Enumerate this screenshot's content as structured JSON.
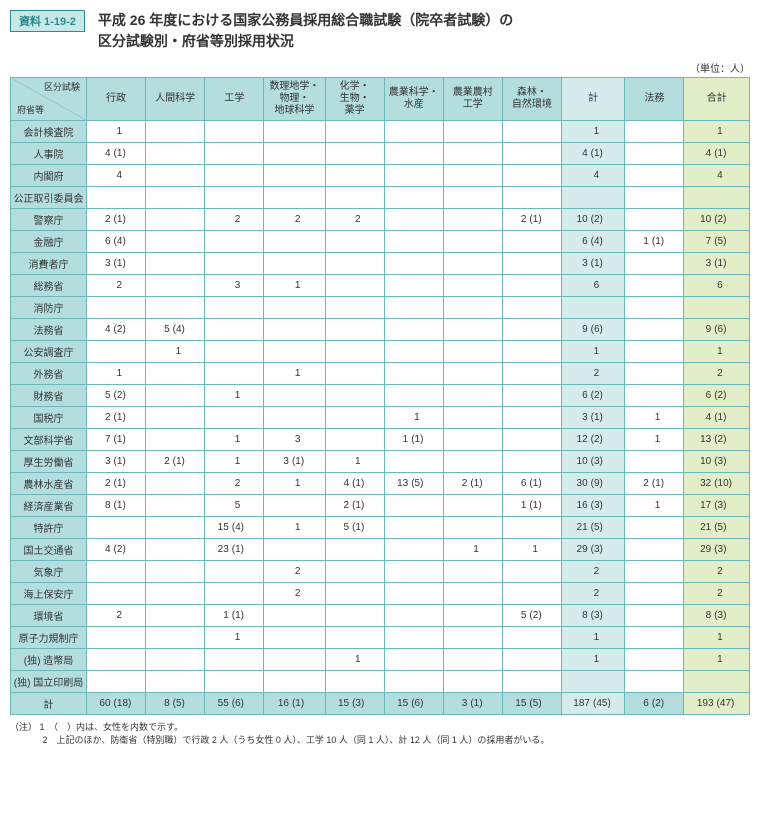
{
  "badge": "資料 1-19-2",
  "title_line1": "平成 26 年度における国家公務員採用総合職試験（院卒者試験）の",
  "title_line2": "区分試験別・府省等別採用状況",
  "unit": "（単位：人）",
  "diag_top": "区分試験",
  "diag_bottom": "府省等",
  "columns": [
    "行政",
    "人間科学",
    "工学",
    "数理地学・\n物理・\n地球科学",
    "化学・\n生物・\n薬学",
    "農業科学・\n水産",
    "農業農村\n工学",
    "森林・\n自然環境",
    "計",
    "法務",
    "合計"
  ],
  "rows": [
    {
      "name": "会計検査院",
      "c": [
        {
          "m": "1"
        },
        {},
        {},
        {},
        {},
        {},
        {},
        {},
        {
          "m": "1"
        },
        {},
        {
          "m": "1"
        }
      ]
    },
    {
      "name": "人事院",
      "c": [
        {
          "m": "4",
          "p": "(1)"
        },
        {},
        {},
        {},
        {},
        {},
        {},
        {},
        {
          "m": "4",
          "p": "(1)"
        },
        {},
        {
          "m": "4",
          "p": "(1)"
        }
      ]
    },
    {
      "name": "内閣府",
      "c": [
        {
          "m": "4"
        },
        {},
        {},
        {},
        {},
        {},
        {},
        {},
        {
          "m": "4"
        },
        {},
        {
          "m": "4"
        }
      ]
    },
    {
      "name": "公正取引委員会",
      "c": [
        {},
        {},
        {},
        {},
        {},
        {},
        {},
        {},
        {},
        {},
        {}
      ]
    },
    {
      "name": "警察庁",
      "c": [
        {
          "m": "2",
          "p": "(1)"
        },
        {},
        {
          "m": "2"
        },
        {
          "m": "2"
        },
        {
          "m": "2"
        },
        {},
        {},
        {
          "m": "2",
          "p": "(1)"
        },
        {
          "m": "10",
          "p": "(2)"
        },
        {},
        {
          "m": "10",
          "p": "(2)"
        }
      ]
    },
    {
      "name": "金融庁",
      "c": [
        {
          "m": "6",
          "p": "(4)"
        },
        {},
        {},
        {},
        {},
        {},
        {},
        {},
        {
          "m": "6",
          "p": "(4)"
        },
        {
          "m": "1",
          "p": "(1)"
        },
        {
          "m": "7",
          "p": "(5)"
        }
      ]
    },
    {
      "name": "消費者庁",
      "c": [
        {
          "m": "3",
          "p": "(1)"
        },
        {},
        {},
        {},
        {},
        {},
        {},
        {},
        {
          "m": "3",
          "p": "(1)"
        },
        {},
        {
          "m": "3",
          "p": "(1)"
        }
      ]
    },
    {
      "name": "総務省",
      "c": [
        {
          "m": "2"
        },
        {},
        {
          "m": "3"
        },
        {
          "m": "1"
        },
        {},
        {},
        {},
        {},
        {
          "m": "6"
        },
        {},
        {
          "m": "6"
        }
      ]
    },
    {
      "name": "消防庁",
      "c": [
        {},
        {},
        {},
        {},
        {},
        {},
        {},
        {},
        {},
        {},
        {}
      ]
    },
    {
      "name": "法務省",
      "c": [
        {
          "m": "4",
          "p": "(2)"
        },
        {
          "m": "5",
          "p": "(4)"
        },
        {},
        {},
        {},
        {},
        {},
        {},
        {
          "m": "9",
          "p": "(6)"
        },
        {},
        {
          "m": "9",
          "p": "(6)"
        }
      ]
    },
    {
      "name": "公安調査庁",
      "c": [
        {},
        {
          "m": "1"
        },
        {},
        {},
        {},
        {},
        {},
        {},
        {
          "m": "1"
        },
        {},
        {
          "m": "1"
        }
      ]
    },
    {
      "name": "外務省",
      "c": [
        {
          "m": "1"
        },
        {},
        {},
        {
          "m": "1"
        },
        {},
        {},
        {},
        {},
        {
          "m": "2"
        },
        {},
        {
          "m": "2"
        }
      ]
    },
    {
      "name": "財務省",
      "c": [
        {
          "m": "5",
          "p": "(2)"
        },
        {},
        {
          "m": "1"
        },
        {},
        {},
        {},
        {},
        {},
        {
          "m": "6",
          "p": "(2)"
        },
        {},
        {
          "m": "6",
          "p": "(2)"
        }
      ]
    },
    {
      "name": "国税庁",
      "c": [
        {
          "m": "2",
          "p": "(1)"
        },
        {},
        {},
        {},
        {},
        {
          "m": "1"
        },
        {},
        {},
        {
          "m": "3",
          "p": "(1)"
        },
        {
          "m": "1"
        },
        {
          "m": "4",
          "p": "(1)"
        }
      ]
    },
    {
      "name": "文部科学省",
      "c": [
        {
          "m": "7",
          "p": "(1)"
        },
        {},
        {
          "m": "1"
        },
        {
          "m": "3"
        },
        {},
        {
          "m": "1",
          "p": "(1)"
        },
        {},
        {},
        {
          "m": "12",
          "p": "(2)"
        },
        {
          "m": "1"
        },
        {
          "m": "13",
          "p": "(2)"
        }
      ]
    },
    {
      "name": "厚生労働省",
      "c": [
        {
          "m": "3",
          "p": "(1)"
        },
        {
          "m": "2",
          "p": "(1)"
        },
        {
          "m": "1"
        },
        {
          "m": "3",
          "p": "(1)"
        },
        {
          "m": "1"
        },
        {},
        {},
        {},
        {
          "m": "10",
          "p": "(3)"
        },
        {},
        {
          "m": "10",
          "p": "(3)"
        }
      ]
    },
    {
      "name": "農林水産省",
      "c": [
        {
          "m": "2",
          "p": "(1)"
        },
        {},
        {
          "m": "2"
        },
        {
          "m": "1"
        },
        {
          "m": "4",
          "p": "(1)"
        },
        {
          "m": "13",
          "p": "(5)"
        },
        {
          "m": "2",
          "p": "(1)"
        },
        {
          "m": "6",
          "p": "(1)"
        },
        {
          "m": "30",
          "p": "(9)"
        },
        {
          "m": "2",
          "p": "(1)"
        },
        {
          "m": "32",
          "p": "(10)"
        }
      ]
    },
    {
      "name": "経済産業省",
      "c": [
        {
          "m": "8",
          "p": "(1)"
        },
        {},
        {
          "m": "5"
        },
        {},
        {
          "m": "2",
          "p": "(1)"
        },
        {},
        {},
        {
          "m": "1",
          "p": "(1)"
        },
        {
          "m": "16",
          "p": "(3)"
        },
        {
          "m": "1"
        },
        {
          "m": "17",
          "p": "(3)"
        }
      ]
    },
    {
      "name": "特許庁",
      "c": [
        {},
        {},
        {
          "m": "15",
          "p": "(4)"
        },
        {
          "m": "1"
        },
        {
          "m": "5",
          "p": "(1)"
        },
        {},
        {},
        {},
        {
          "m": "21",
          "p": "(5)"
        },
        {},
        {
          "m": "21",
          "p": "(5)"
        }
      ]
    },
    {
      "name": "国土交通省",
      "c": [
        {
          "m": "4",
          "p": "(2)"
        },
        {},
        {
          "m": "23",
          "p": "(1)"
        },
        {},
        {},
        {},
        {
          "m": "1"
        },
        {
          "m": "1"
        },
        {
          "m": "29",
          "p": "(3)"
        },
        {},
        {
          "m": "29",
          "p": "(3)"
        }
      ]
    },
    {
      "name": "気象庁",
      "c": [
        {},
        {},
        {},
        {
          "m": "2"
        },
        {},
        {},
        {},
        {},
        {
          "m": "2"
        },
        {},
        {
          "m": "2"
        }
      ]
    },
    {
      "name": "海上保安庁",
      "c": [
        {},
        {},
        {},
        {
          "m": "2"
        },
        {},
        {},
        {},
        {},
        {
          "m": "2"
        },
        {},
        {
          "m": "2"
        }
      ]
    },
    {
      "name": "環境省",
      "c": [
        {
          "m": "2"
        },
        {},
        {
          "m": "1",
          "p": "(1)"
        },
        {},
        {},
        {},
        {},
        {
          "m": "5",
          "p": "(2)"
        },
        {
          "m": "8",
          "p": "(3)"
        },
        {},
        {
          "m": "8",
          "p": "(3)"
        }
      ]
    },
    {
      "name": "原子力規制庁",
      "c": [
        {},
        {},
        {
          "m": "1"
        },
        {},
        {},
        {},
        {},
        {},
        {
          "m": "1"
        },
        {},
        {
          "m": "1"
        }
      ]
    },
    {
      "name": "(独) 造幣局",
      "c": [
        {},
        {},
        {},
        {},
        {
          "m": "1"
        },
        {},
        {},
        {},
        {
          "m": "1"
        },
        {},
        {
          "m": "1"
        }
      ]
    },
    {
      "name": "(独) 国立印刷局",
      "c": [
        {},
        {},
        {},
        {},
        {},
        {},
        {},
        {},
        {},
        {},
        {}
      ]
    }
  ],
  "total_row": {
    "name": "計",
    "c": [
      {
        "m": "60",
        "p": "(18)"
      },
      {
        "m": "8",
        "p": "(5)"
      },
      {
        "m": "55",
        "p": "(6)"
      },
      {
        "m": "16",
        "p": "(1)"
      },
      {
        "m": "15",
        "p": "(3)"
      },
      {
        "m": "15",
        "p": "(6)"
      },
      {
        "m": "3",
        "p": "(1)"
      },
      {
        "m": "15",
        "p": "(5)"
      },
      {
        "m": "187",
        "p": "(45)"
      },
      {
        "m": "6",
        "p": "(2)"
      },
      {
        "m": "193",
        "p": "(47)"
      }
    ]
  },
  "notes_label": "（注）",
  "note1": "1　（　）内は、女性を内数で示す。",
  "note2": "2　上記のほか、防衛省（特別職）で行政 2 人（うち女性 0 人）、工学 10 人（同 1 人）、計 12 人（同 1 人）の採用者がいる。"
}
